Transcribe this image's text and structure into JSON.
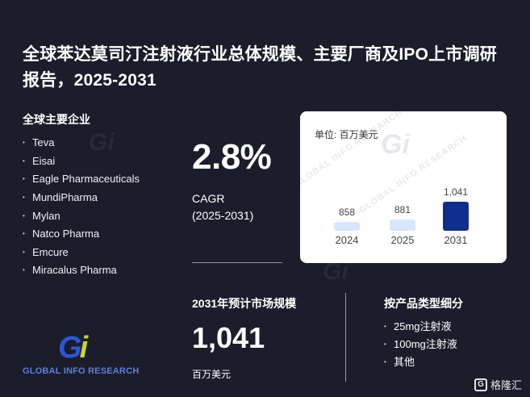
{
  "title": "全球苯达莫司汀注射液行业总体规模、主要厂商及IPO上市调研报告，2025-2031",
  "companies": {
    "heading": "全球主要企业",
    "items": [
      "Teva",
      "Eisai",
      "Eagle Pharmaceuticals",
      "MundiPharma",
      "Mylan",
      "Natco Pharma",
      "Emcure",
      "Miracalus Pharma"
    ]
  },
  "cagr": {
    "value": "2.8%",
    "label": "CAGR",
    "period": "(2025-2031)"
  },
  "chart_data": {
    "type": "bar",
    "unit": "单位: 百万美元",
    "categories": [
      "2024",
      "2025",
      "2031"
    ],
    "values": [
      858,
      881,
      1041
    ],
    "value_labels": [
      "858",
      "881",
      "1,041"
    ],
    "colors": [
      "#d6e6fb",
      "#d6e6fb",
      "#0f2f8e"
    ]
  },
  "market": {
    "heading": "2031年预计市场规模",
    "value": "1,041",
    "unit": "百万美元"
  },
  "segments": {
    "heading": "按产品类型细分",
    "items": [
      "25mg注射液",
      "100mg注射液",
      "其他"
    ]
  },
  "brand": {
    "text": "GLOBAL INFO RESEARCH",
    "mark_g": "G",
    "mark_i": "i"
  },
  "watermark": {
    "text": "GLOBAL INFO RESEARCH",
    "logo": "Gi"
  },
  "corner_badge": {
    "icon": "G",
    "text": "格隆汇"
  },
  "colors": {
    "background": "#1b1d2b",
    "bar_light": "#d6e6fb",
    "bar_dark": "#0f2f8e",
    "brand_blue": "#2b56d8",
    "brand_green": "#c8d62a"
  }
}
